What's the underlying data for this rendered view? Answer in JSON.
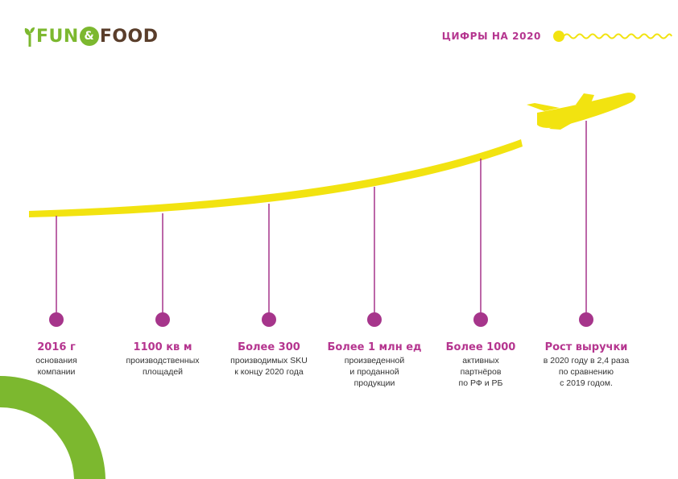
{
  "logo": {
    "fun": "FUN",
    "amp": "&",
    "food": "FOOD"
  },
  "header": {
    "title": "ЦИФРЫ НА 2020"
  },
  "colors": {
    "accent": "#b5358f",
    "yellow": "#f2e310",
    "green": "#7cb82f",
    "brown": "#5a3e2b"
  },
  "milestones": [
    {
      "title": "2016 г",
      "desc": "основания\nкомпании"
    },
    {
      "title": "1100 кв м",
      "desc": "производственных\nплощадей"
    },
    {
      "title": "Более 300",
      "desc": "производимых SKU\nк концу 2020 года"
    },
    {
      "title": "Более 1 млн ед",
      "desc": "произведенной\nи проданной\nпродукции"
    },
    {
      "title": "Более 1000",
      "desc": "активных\nпартнёров\nпо РФ и РБ"
    },
    {
      "title": "Рост выручки",
      "desc": "в 2020 году в 2,4 раза\nпо сравнению\nс 2019 годом."
    }
  ],
  "icons": [
    "airplane-icon",
    "sprout-icon",
    "wavy-line-icon"
  ]
}
